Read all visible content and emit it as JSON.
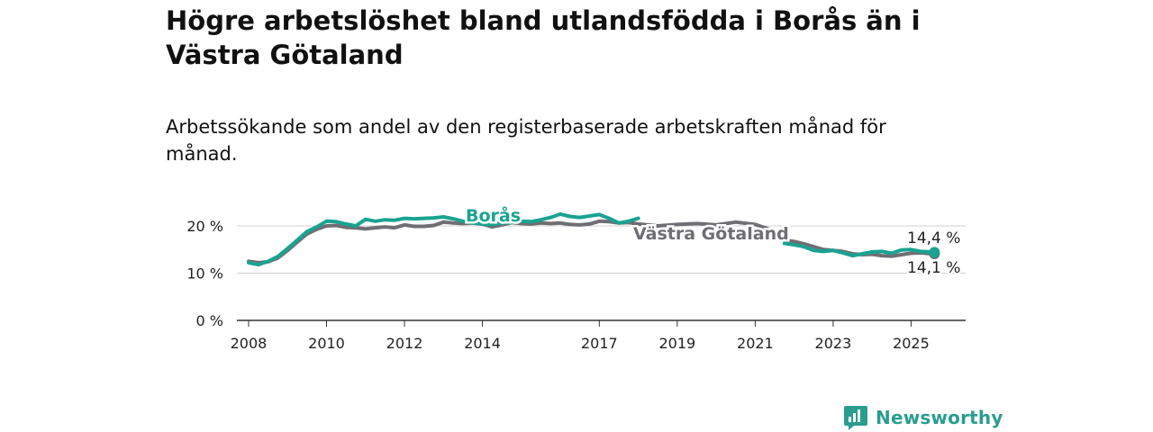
{
  "title": "Högre arbetslöshet bland utlandsfödda i Borås än i Västra Götaland",
  "subtitle": "Arbetssökande som andel av den registerbaserade arbetskraften månad för månad.",
  "brand": "Newsworthy",
  "colors": {
    "boras": "#1aa391",
    "vg": "#6e6e73",
    "grid": "#d0d0d0",
    "axis": "#333333"
  },
  "chart_data": {
    "type": "line",
    "title": "Högre arbetslöshet bland utlandsfödda i Borås än i Västra Götaland",
    "subtitle": "Arbetssökande som andel av den registerbaserade arbetskraften månad för månad.",
    "ylim": [
      0,
      20
    ],
    "yticks": [
      0,
      10,
      20
    ],
    "ytick_labels": [
      "0 %",
      "10 %",
      "20 %"
    ],
    "xlim": [
      2007.7,
      2026.4
    ],
    "xticks": [
      2008,
      2010,
      2012,
      2014,
      2017,
      2019,
      2021,
      2023,
      2025
    ],
    "xtick_labels": [
      "2008",
      "2010",
      "2012",
      "2014",
      "2017",
      "2019",
      "2021",
      "2023",
      "2025"
    ],
    "grid": "horizontal",
    "series": [
      {
        "name": "Västra Götaland",
        "color": "#6e6e73",
        "end_label": "14,1 %",
        "points": [
          [
            2008.0,
            12.5
          ],
          [
            2008.25,
            12.2
          ],
          [
            2008.5,
            12.4
          ],
          [
            2008.75,
            13.2
          ],
          [
            2009.0,
            14.8
          ],
          [
            2009.25,
            16.6
          ],
          [
            2009.5,
            18.3
          ],
          [
            2009.75,
            19.3
          ],
          [
            2010.0,
            20.0
          ],
          [
            2010.25,
            20.1
          ],
          [
            2010.5,
            19.7
          ],
          [
            2010.75,
            19.6
          ],
          [
            2011.0,
            19.4
          ],
          [
            2011.25,
            19.6
          ],
          [
            2011.5,
            19.8
          ],
          [
            2011.75,
            19.6
          ],
          [
            2012.0,
            20.2
          ],
          [
            2012.25,
            19.9
          ],
          [
            2012.5,
            19.9
          ],
          [
            2012.75,
            20.1
          ],
          [
            2013.0,
            20.8
          ],
          [
            2013.25,
            20.6
          ],
          [
            2013.5,
            20.5
          ],
          [
            2013.75,
            20.6
          ],
          [
            2014.0,
            20.4
          ],
          [
            2014.25,
            19.8
          ],
          [
            2014.5,
            20.2
          ],
          [
            2014.75,
            20.7
          ],
          [
            2015.0,
            20.5
          ],
          [
            2015.25,
            20.4
          ],
          [
            2015.5,
            20.6
          ],
          [
            2015.75,
            20.5
          ],
          [
            2016.0,
            20.6
          ],
          [
            2016.25,
            20.3
          ],
          [
            2016.5,
            20.2
          ],
          [
            2016.75,
            20.4
          ],
          [
            2017.0,
            21.0
          ],
          [
            2017.25,
            20.9
          ],
          [
            2017.5,
            20.6
          ],
          [
            2017.75,
            20.7
          ],
          [
            2018.0,
            20.4
          ],
          [
            2018.5,
            20.0
          ],
          [
            2019.0,
            20.3
          ],
          [
            2019.5,
            20.5
          ],
          [
            2020.0,
            20.2
          ],
          [
            2020.5,
            20.8
          ],
          [
            2021.0,
            20.3
          ],
          [
            2021.5,
            18.9
          ],
          [
            2021.75,
            17.0
          ],
          [
            2022.0,
            16.7
          ],
          [
            2022.25,
            16.2
          ],
          [
            2022.5,
            15.6
          ],
          [
            2022.75,
            15.0
          ],
          [
            2023.0,
            14.8
          ],
          [
            2023.25,
            14.6
          ],
          [
            2023.5,
            14.1
          ],
          [
            2023.75,
            13.9
          ],
          [
            2024.0,
            14.0
          ],
          [
            2024.25,
            13.7
          ],
          [
            2024.5,
            13.6
          ],
          [
            2024.75,
            13.9
          ],
          [
            2025.0,
            14.2
          ],
          [
            2025.25,
            14.3
          ],
          [
            2025.5,
            14.1
          ],
          [
            2025.6,
            14.1
          ]
        ]
      },
      {
        "name": "Borås",
        "color": "#1aa391",
        "end_label": "14,4 %",
        "points": [
          [
            2008.0,
            12.2
          ],
          [
            2008.25,
            11.8
          ],
          [
            2008.5,
            12.5
          ],
          [
            2008.75,
            13.5
          ],
          [
            2009.0,
            15.2
          ],
          [
            2009.25,
            17.0
          ],
          [
            2009.5,
            18.8
          ],
          [
            2009.75,
            19.8
          ],
          [
            2010.0,
            21.0
          ],
          [
            2010.25,
            20.9
          ],
          [
            2010.5,
            20.4
          ],
          [
            2010.75,
            20.0
          ],
          [
            2011.0,
            21.4
          ],
          [
            2011.25,
            21.0
          ],
          [
            2011.5,
            21.3
          ],
          [
            2011.75,
            21.2
          ],
          [
            2012.0,
            21.6
          ],
          [
            2012.25,
            21.5
          ],
          [
            2012.5,
            21.6
          ],
          [
            2012.75,
            21.7
          ],
          [
            2013.0,
            21.9
          ],
          [
            2013.25,
            21.5
          ],
          [
            2013.5,
            21.0
          ],
          [
            2013.75,
            20.6
          ],
          [
            2014.0,
            20.4
          ],
          [
            2014.25,
            20.3
          ],
          [
            2014.5,
            20.6
          ],
          [
            2014.75,
            20.7
          ],
          [
            2015.0,
            21.0
          ],
          [
            2015.25,
            20.9
          ],
          [
            2015.5,
            21.3
          ],
          [
            2015.75,
            21.8
          ],
          [
            2016.0,
            22.5
          ],
          [
            2016.25,
            22.0
          ],
          [
            2016.5,
            21.8
          ],
          [
            2016.75,
            22.1
          ],
          [
            2017.0,
            22.4
          ],
          [
            2017.25,
            21.6
          ],
          [
            2017.5,
            20.6
          ],
          [
            2017.75,
            21.0
          ],
          [
            2018.0,
            21.6
          ],
          [
            2021.75,
            16.3
          ],
          [
            2022.0,
            16.0
          ],
          [
            2022.25,
            15.6
          ],
          [
            2022.5,
            14.8
          ],
          [
            2022.75,
            14.6
          ],
          [
            2023.0,
            14.8
          ],
          [
            2023.25,
            14.3
          ],
          [
            2023.5,
            13.7
          ],
          [
            2023.75,
            14.1
          ],
          [
            2024.0,
            14.5
          ],
          [
            2024.25,
            14.6
          ],
          [
            2024.5,
            14.2
          ],
          [
            2024.75,
            14.9
          ],
          [
            2025.0,
            15.0
          ],
          [
            2025.25,
            14.6
          ],
          [
            2025.5,
            14.5
          ],
          [
            2025.6,
            14.4
          ]
        ]
      }
    ],
    "series_labels": [
      "Borås",
      "Västra Götaland"
    ]
  }
}
